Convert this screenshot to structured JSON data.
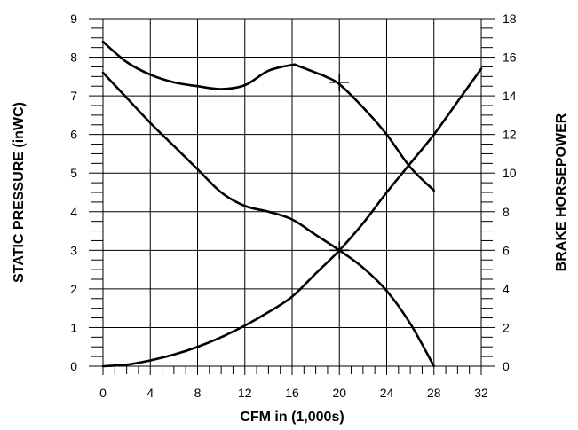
{
  "chart_data": {
    "type": "line",
    "xlabel": "CFM in (1,000s)",
    "ylabel_left": "STATIC PRESSURE (inWC)",
    "ylabel_right": "BRAKE HORSEPOWER",
    "xlim": [
      0,
      32
    ],
    "ylim_left": [
      0,
      9
    ],
    "ylim_right": [
      0,
      18
    ],
    "grid": true,
    "x_ticks": [
      "0",
      "4",
      "8",
      "12",
      "16",
      "20",
      "24",
      "28",
      "32"
    ],
    "y_left_ticks": [
      "0",
      "1",
      "2",
      "3",
      "4",
      "5",
      "6",
      "7",
      "8",
      "9"
    ],
    "y_right_ticks": [
      "0",
      "2",
      "4",
      "6",
      "8",
      "10",
      "12",
      "14",
      "16",
      "18"
    ],
    "series": [
      {
        "axis": "right",
        "x": [
          0,
          2,
          4,
          6,
          8,
          10,
          12,
          14,
          16,
          16.5,
          18,
          19,
          20,
          22,
          24,
          26,
          28
        ],
        "y": [
          16.8,
          15.75,
          15.1,
          14.7,
          14.5,
          14.35,
          14.55,
          15.3,
          15.6,
          15.55,
          15.2,
          14.95,
          14.6,
          13.4,
          12.0,
          10.3,
          9.1
        ]
      },
      {
        "axis": "left",
        "x": [
          0,
          2,
          4,
          6,
          8,
          10,
          12,
          14,
          16,
          18,
          20,
          22,
          24,
          26,
          28
        ],
        "y": [
          7.6,
          6.95,
          6.3,
          5.7,
          5.1,
          4.5,
          4.15,
          4.0,
          3.8,
          3.4,
          3.0,
          2.55,
          1.95,
          1.1,
          0.0
        ]
      },
      {
        "axis": "left",
        "x": [
          0,
          2,
          4,
          6,
          8,
          10,
          12,
          14,
          16,
          18,
          20,
          22,
          24,
          26,
          28,
          30,
          32
        ],
        "y": [
          0.0,
          0.04,
          0.15,
          0.3,
          0.5,
          0.75,
          1.05,
          1.4,
          1.8,
          2.4,
          3.0,
          3.7,
          4.5,
          5.25,
          6.0,
          6.85,
          7.7
        ]
      }
    ],
    "markers": [
      {
        "x": 20,
        "y": 14.7,
        "axis": "right",
        "shape": "plus"
      },
      {
        "x": 20,
        "y": 3.0,
        "axis": "left",
        "shape": "plus"
      }
    ]
  }
}
